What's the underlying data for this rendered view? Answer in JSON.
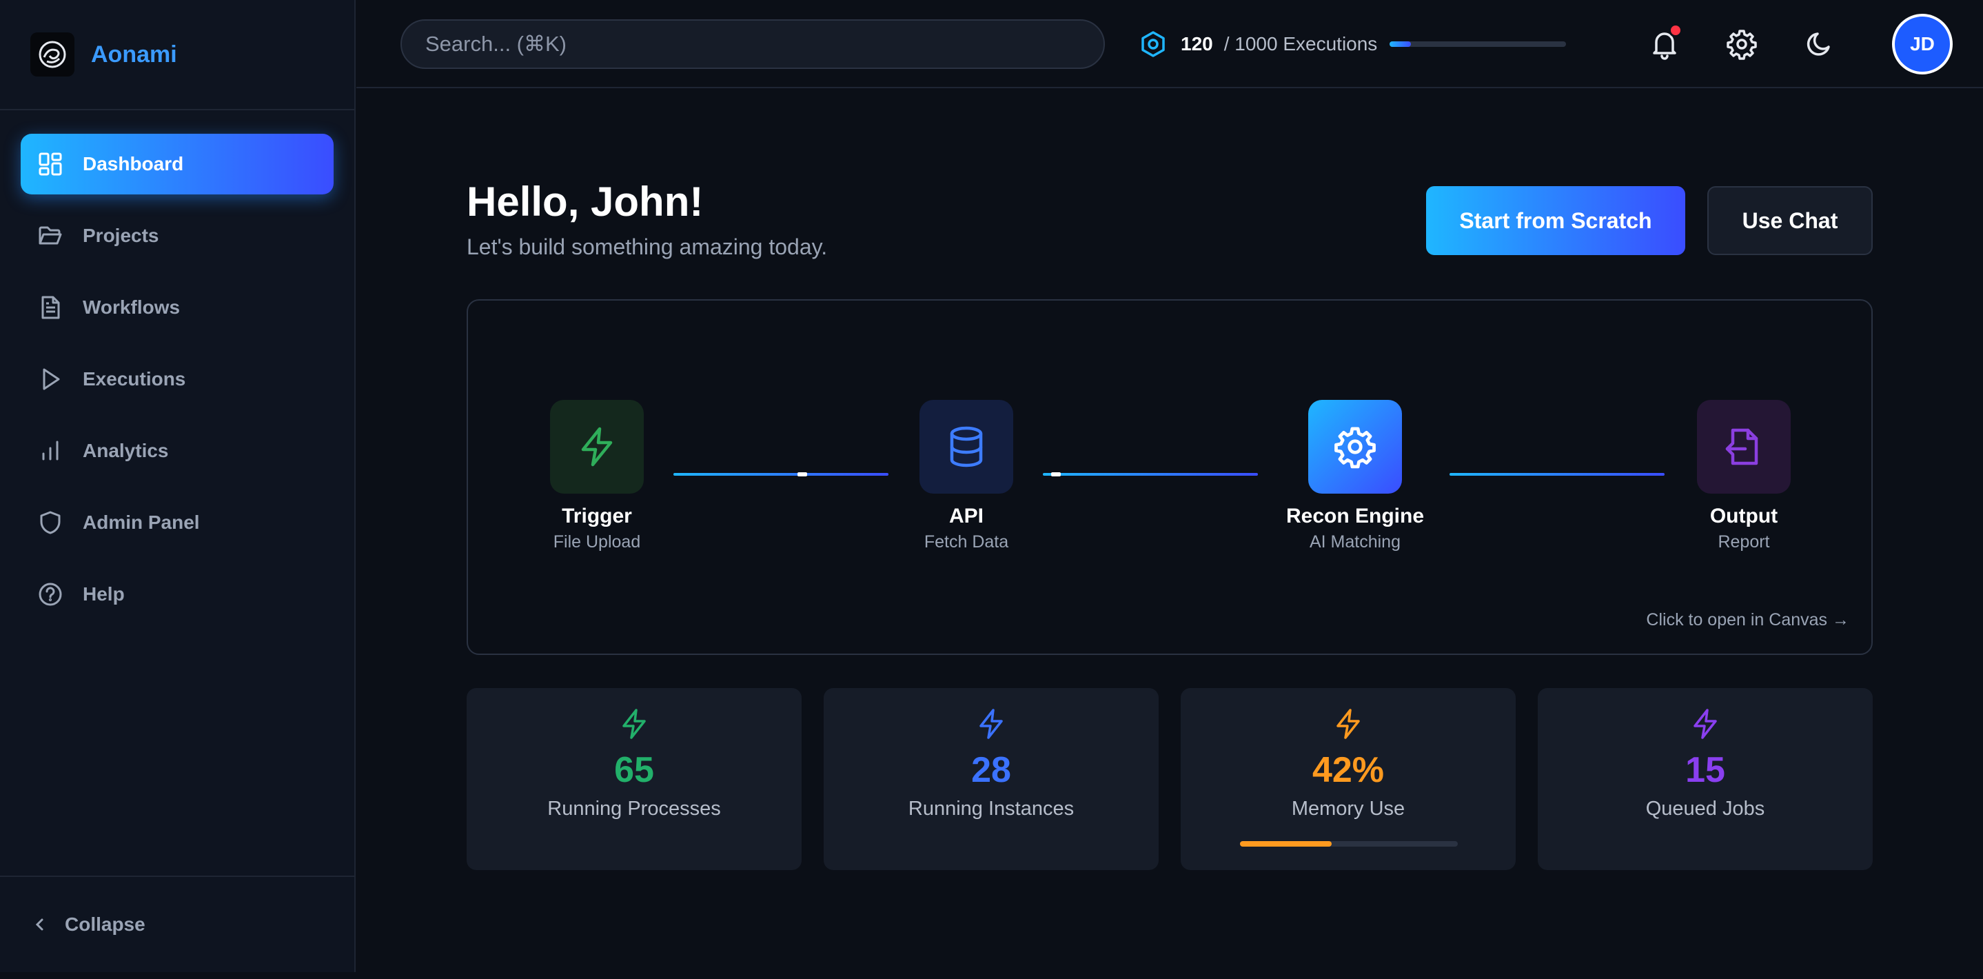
{
  "brand": {
    "name": "Aonami"
  },
  "sidebar": {
    "items": [
      {
        "label": "Dashboard",
        "icon": "dashboard-icon",
        "active": true
      },
      {
        "label": "Projects",
        "icon": "folder-icon",
        "active": false
      },
      {
        "label": "Workflows",
        "icon": "document-icon",
        "active": false
      },
      {
        "label": "Executions",
        "icon": "play-icon",
        "active": false
      },
      {
        "label": "Analytics",
        "icon": "bar-chart-icon",
        "active": false
      },
      {
        "label": "Admin Panel",
        "icon": "shield-icon",
        "active": false
      },
      {
        "label": "Help",
        "icon": "help-icon",
        "active": false
      }
    ],
    "collapse_label": "Collapse"
  },
  "header": {
    "search_placeholder": "Search... (⌘K)",
    "executions": {
      "used": "120",
      "total_label": "/ 1000 Executions",
      "progress": 0.12
    },
    "avatar_initials": "JD"
  },
  "main": {
    "greeting_title": "Hello, John!",
    "greeting_subtitle": "Let's build something amazing today.",
    "primary_button": "Start from Scratch",
    "secondary_button": "Use Chat",
    "workflow": {
      "nodes": [
        {
          "title": "Trigger",
          "subtitle": "File Upload",
          "icon": "lightning-icon",
          "color": "#2fae5a"
        },
        {
          "title": "API",
          "subtitle": "Fetch Data",
          "icon": "database-icon",
          "color": "#3d7cff"
        },
        {
          "title": "Recon Engine",
          "subtitle": "AI Matching",
          "icon": "gear-icon",
          "color": "#ffffff"
        },
        {
          "title": "Output",
          "subtitle": "Report",
          "icon": "file-export-icon",
          "color": "#8b3fe0"
        }
      ],
      "link": "Click to open in Canvas →"
    },
    "stats": [
      {
        "value": "65",
        "label": "Running Processes",
        "color": "#22b06a"
      },
      {
        "value": "28",
        "label": "Running Instances",
        "color": "#3b72ff"
      },
      {
        "value": "42%",
        "label": "Memory Use",
        "color": "#ff9a1f",
        "progress": 0.42
      },
      {
        "value": "15",
        "label": "Queued Jobs",
        "color": "#8a3ff0"
      }
    ]
  },
  "colors": {
    "accent_start": "#1fb6ff",
    "accent_end": "#3a4dff",
    "background": "#0b0f17"
  }
}
